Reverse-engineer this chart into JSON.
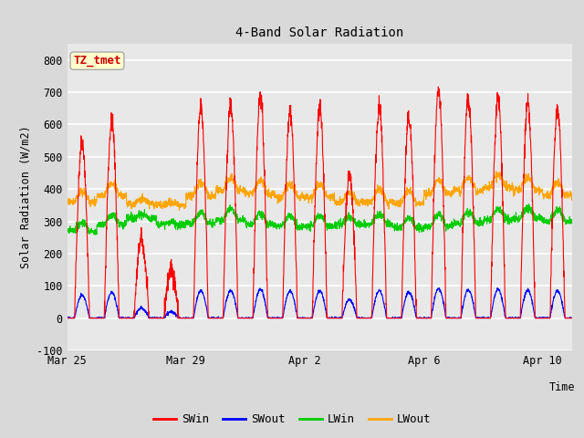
{
  "title": "4-Band Solar Radiation",
  "xlabel": "Time",
  "ylabel": "Solar Radiation (W/m2)",
  "ylim": [
    -100,
    850
  ],
  "yticks": [
    -100,
    0,
    100,
    200,
    300,
    400,
    500,
    600,
    700,
    800
  ],
  "xtick_labels": [
    "Mar 25",
    "Mar 29",
    "Apr 2",
    "Apr 6",
    "Apr 10"
  ],
  "series_colors": {
    "SWin": "#ff0000",
    "SWout": "#0000ff",
    "LWin": "#00cc00",
    "LWout": "#ffa500"
  },
  "annotation_text": "TZ_tmet",
  "annotation_color": "#cc0000",
  "annotation_bg": "#ffffcc",
  "bg_color": "#d9d9d9",
  "plot_bg": "#e8e8e8",
  "grid_color": "#ffffff",
  "n_days": 17,
  "points_per_day": 144,
  "legend_entries": [
    "SWin",
    "SWout",
    "LWin",
    "LWout"
  ]
}
